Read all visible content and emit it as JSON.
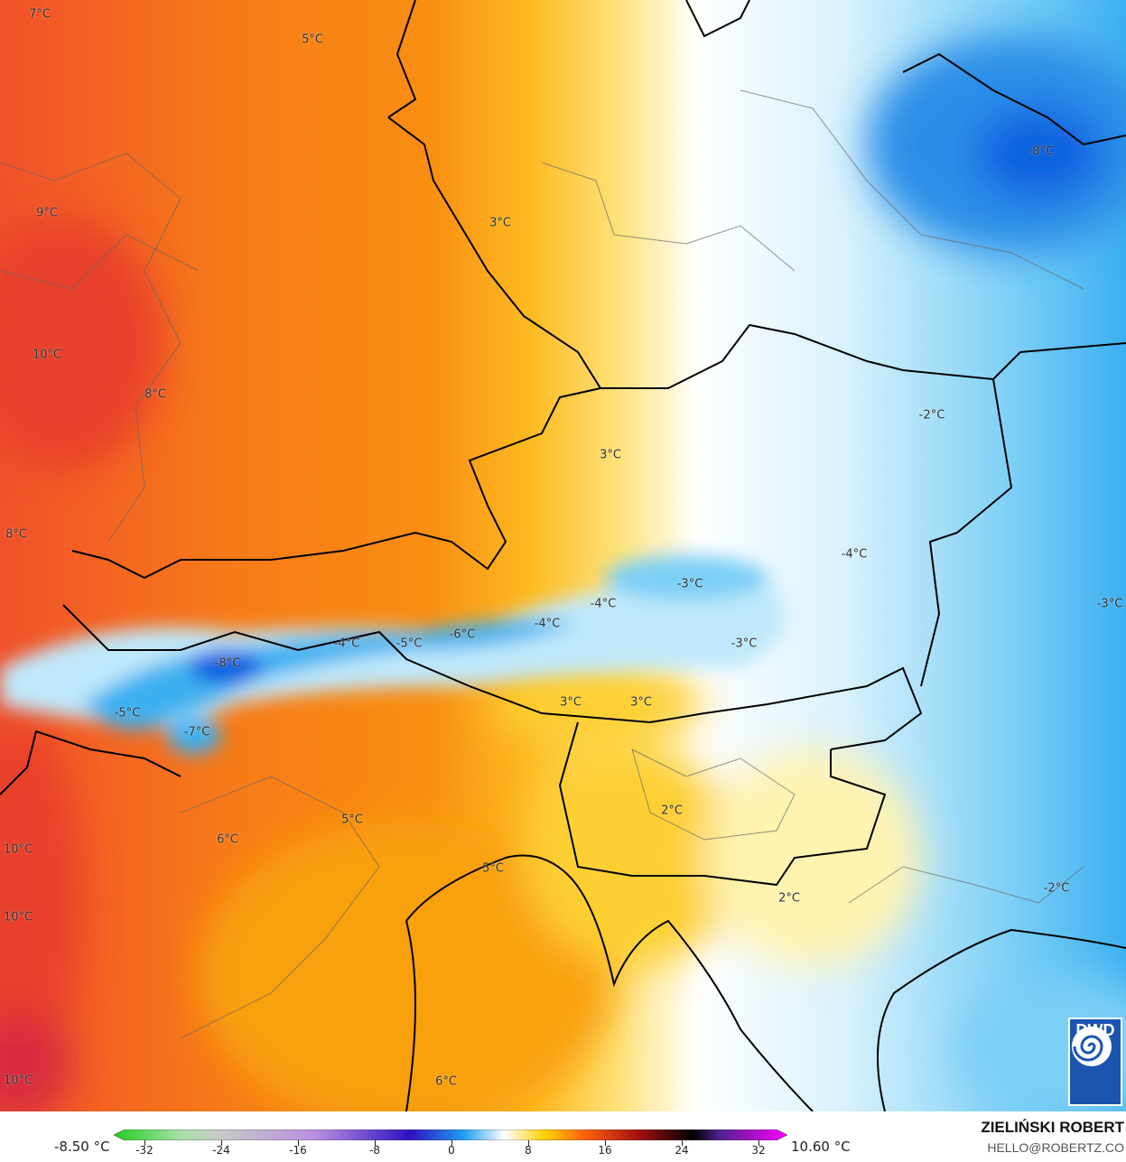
{
  "map": {
    "colors": {
      "warm_red": "#f0512a",
      "orange": "#f98e12",
      "yellow": "#fdca2a",
      "white": "#ffffff",
      "light_blue": "#bfe8fb",
      "blue": "#3cb0f0",
      "deep_blue": "#1060e0"
    },
    "labels": [
      "7°C",
      "5°C",
      "9°C",
      "3°C",
      "-8°C",
      "10°C",
      "8°C",
      "-2°C",
      "3°C",
      "8°C",
      "-4°C",
      "-3°C",
      "-4°C",
      "-3°C",
      "-4°C",
      "-4°C",
      "-5°C",
      "-6°C",
      "-3°C",
      "-8°C",
      "3°C",
      "3°C",
      "-5°C",
      "-7°C",
      "2°C",
      "5°C",
      "6°C",
      "10°C",
      "5°C",
      "2°C",
      "-2°C",
      "10°C",
      "10°C",
      "6°C"
    ]
  },
  "logo": {
    "text": "DWD",
    "icon": "spiral-icon"
  },
  "legend": {
    "min_label": "-8.50 °C",
    "max_label": "10.60 °C",
    "ticks": [
      "-32",
      "-24",
      "-16",
      "-8",
      "0",
      "8",
      "16",
      "24",
      "32"
    ]
  },
  "credits": {
    "author": "ZIELIŃSKI ROBERT",
    "email": "HELLO@ROBERTZ.CO"
  }
}
